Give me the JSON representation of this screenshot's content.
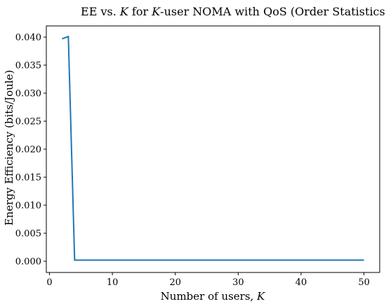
{
  "chart_data": {
    "type": "line",
    "title": "EE vs. K for K-user NOMA with QoS (Order Statistics)",
    "title_parts": [
      "EE vs. ",
      "K",
      " for ",
      "K",
      "-user NOMA with QoS (Order Statistics)"
    ],
    "xlabel": "Number of users, K",
    "xlabel_parts": [
      "Number of users, ",
      "K"
    ],
    "ylabel": "Energy Efficiency (bits/Joule)",
    "xlim": [
      -0.5,
      52.5
    ],
    "ylim": [
      -0.002,
      0.042
    ],
    "xticks": [
      0,
      10,
      20,
      30,
      40,
      50
    ],
    "xtick_labels": [
      "0",
      "10",
      "20",
      "30",
      "40",
      "50"
    ],
    "yticks": [
      0.0,
      0.005,
      0.01,
      0.015,
      0.02,
      0.025,
      0.03,
      0.035,
      0.04
    ],
    "ytick_labels": [
      "0.000",
      "0.005",
      "0.010",
      "0.015",
      "0.020",
      "0.025",
      "0.030",
      "0.035",
      "0.040"
    ],
    "grid": false,
    "series": [
      {
        "color": "#1f77b4",
        "x": [
          2,
          3,
          4,
          50
        ],
        "y": [
          0.0397,
          0.0401,
          0.0002,
          0.0002
        ]
      }
    ]
  }
}
